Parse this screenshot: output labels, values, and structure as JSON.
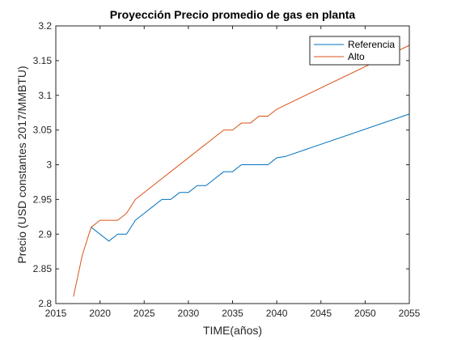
{
  "chart_data": {
    "type": "line",
    "title": "Proyección Precio promedio de gas en planta",
    "xlabel": "TIME(años)",
    "ylabel": "Precio (USD constantes 2017/MMBTU)",
    "xlim": [
      2015,
      2055
    ],
    "ylim": [
      2.8,
      3.2
    ],
    "xticks": [
      "2015",
      "2020",
      "2025",
      "2030",
      "2035",
      "2040",
      "2045",
      "2050",
      "2055"
    ],
    "yticks": [
      "2.8",
      "2.85",
      "2.9",
      "2.95",
      "3",
      "3.05",
      "3.1",
      "3.15",
      "3.2"
    ],
    "grid": false,
    "legend_position": "top-right",
    "series": [
      {
        "name": "Referencia",
        "color": "#0072BD",
        "x": [
          2019,
          2020,
          2021,
          2022,
          2023,
          2024,
          2025,
          2026,
          2027,
          2028,
          2029,
          2030,
          2031,
          2032,
          2033,
          2034,
          2035,
          2036,
          2037,
          2038,
          2039,
          2040,
          2041,
          2055
        ],
        "y": [
          2.91,
          2.9,
          2.89,
          2.9,
          2.9,
          2.92,
          2.93,
          2.94,
          2.95,
          2.95,
          2.96,
          2.96,
          2.97,
          2.97,
          2.98,
          2.99,
          2.99,
          3.0,
          3.0,
          3.0,
          3.0,
          3.01,
          3.012,
          3.073
        ]
      },
      {
        "name": "Alto",
        "color": "#D95319",
        "x": [
          2017,
          2018,
          2019,
          2020,
          2021,
          2022,
          2023,
          2024,
          2034,
          2035,
          2036,
          2037,
          2038,
          2039,
          2040,
          2055
        ],
        "y": [
          2.81,
          2.87,
          2.91,
          2.92,
          2.92,
          2.92,
          2.93,
          2.95,
          3.05,
          3.05,
          3.06,
          3.06,
          3.07,
          3.07,
          3.08,
          3.172
        ]
      }
    ]
  }
}
